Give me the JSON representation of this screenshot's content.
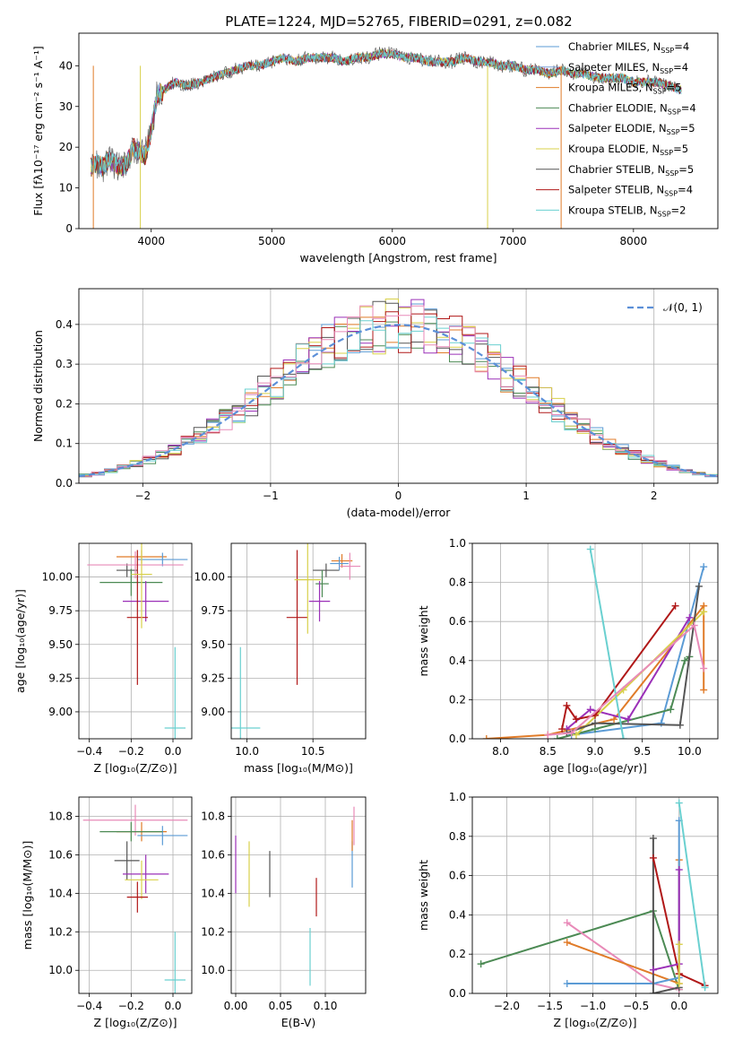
{
  "title": "PLATE=1224, MJD=52765, FIBERID=0291, z=0.082",
  "colors": {
    "c1": "#5b9bd5",
    "c2": "#e07b28",
    "c3": "#4c8a54",
    "c4": "#9b30b8",
    "c5": "#d8d04a",
    "c6": "#555555",
    "c7": "#b01818",
    "c8": "#6ad0d0",
    "c9": "#e88ab8",
    "c10": "#5577dd"
  },
  "chart_data": [
    {
      "type": "line",
      "xlabel": "wavelength [Angstrom, rest frame]",
      "ylabel": "Flux [fλ10⁻¹⁷ erg cm⁻² s⁻¹ A⁻¹]",
      "xlim": [
        3400,
        8700
      ],
      "ylim": [
        0,
        48
      ],
      "xticks": [
        4000,
        5000,
        6000,
        7000,
        8000
      ],
      "yticks": [
        0,
        10,
        20,
        30,
        40
      ],
      "legend_position": "top-right",
      "spectrum": {
        "x": [
          3500,
          3550,
          3600,
          3650,
          3700,
          3750,
          3800,
          3850,
          3900,
          3950,
          4000,
          4050,
          4100,
          4200,
          4300,
          4400,
          4500,
          4600,
          4700,
          4800,
          4900,
          5000,
          5100,
          5200,
          5300,
          5400,
          5500,
          5600,
          5700,
          5800,
          5900,
          6000,
          6100,
          6200,
          6300,
          6400,
          6500,
          6600,
          6700,
          6800,
          6900,
          7000,
          7100,
          7200,
          7300,
          7400,
          7500,
          7600,
          7700,
          7800,
          7900,
          8000,
          8100,
          8200,
          8300,
          8400
        ],
        "y": [
          15,
          16,
          15,
          17,
          16,
          15,
          16,
          20,
          19,
          18,
          24,
          33,
          34,
          36,
          35,
          36,
          37,
          38,
          39,
          40,
          40,
          41,
          42,
          41,
          42,
          42,
          42,
          41,
          42,
          42,
          43,
          43,
          42,
          42,
          41,
          41,
          41,
          42,
          41,
          41,
          40,
          40,
          39,
          39,
          38,
          39,
          38,
          38,
          37,
          37,
          37,
          36,
          36,
          36,
          35,
          34
        ]
      },
      "series": [
        {
          "name": "Chabrier MILES, N_SSP=4",
          "label_main": "Chabrier MILES, N",
          "sub": "SSP",
          "suffix": "=4",
          "color": "#5b9bd5"
        },
        {
          "name": "Salpeter MILES, N_SSP=4",
          "label_main": "Salpeter MILES, N",
          "sub": "SSP",
          "suffix": "=4",
          "color": "#7aa0d8"
        },
        {
          "name": "Kroupa MILES, N_SSP=5",
          "label_main": "Kroupa MILES, N",
          "sub": "SSP",
          "suffix": "=5",
          "color": "#e07b28"
        },
        {
          "name": "Chabrier ELODIE, N_SSP=4",
          "label_main": "Chabrier ELODIE, N",
          "sub": "SSP",
          "suffix": "=4",
          "color": "#4c8a54"
        },
        {
          "name": "Salpeter ELODIE, N_SSP=5",
          "label_main": "Salpeter ELODIE, N",
          "sub": "SSP",
          "suffix": "=5",
          "color": "#9b30b8"
        },
        {
          "name": "Kroupa ELODIE, N_SSP=5",
          "label_main": "Kroupa ELODIE, N",
          "sub": "SSP",
          "suffix": "=5",
          "color": "#d8d04a"
        },
        {
          "name": "Chabrier STELIB, N_SSP=5",
          "label_main": "Chabrier STELIB, N",
          "sub": "SSP",
          "suffix": "=5",
          "color": "#555555"
        },
        {
          "name": "Salpeter STELIB, N_SSP=4",
          "label_main": "Salpeter STELIB, N",
          "sub": "SSP",
          "suffix": "=4",
          "color": "#b01818"
        },
        {
          "name": "Kroupa STELIB, N_SSP=2",
          "label_main": "Kroupa STELIB, N",
          "sub": "SSP",
          "suffix": "=2",
          "color": "#6ad0d0"
        }
      ]
    },
    {
      "type": "area",
      "xlabel": "(data-model)/error",
      "ylabel": "Normed distribution",
      "xlim": [
        -2.5,
        2.5
      ],
      "ylim": [
        0,
        0.49
      ],
      "xticks": [
        -2,
        -1,
        0,
        1,
        2
      ],
      "yticks": [
        0.0,
        0.1,
        0.2,
        0.3,
        0.4
      ],
      "grid": true,
      "legend_position": "top-right",
      "legend": [
        {
          "name": "𝒩(0, 1)",
          "style": "dashed",
          "color": "#5b8fd8"
        }
      ],
      "bin_width": 0.1,
      "histogram_colors": [
        "#5b9bd5",
        "#e07b28",
        "#4c8a54",
        "#9b30b8",
        "#d8d04a",
        "#555555",
        "#b01818",
        "#6ad0d0",
        "#e88ab8"
      ]
    },
    {
      "type": "scatter",
      "xlabel": "Z [log₁₀(Z/Z⊙)]",
      "ylabel": "age  [log₁₀(age/yr)]",
      "xlim": [
        -0.45,
        0.09
      ],
      "ylim": [
        8.8,
        10.25
      ],
      "xticks": [
        -0.4,
        -0.2,
        0.0
      ],
      "yticks": [
        9.0,
        9.25,
        9.5,
        9.75,
        10.0
      ],
      "grid": true,
      "points": [
        {
          "x": -0.22,
          "y": 10.05,
          "xerr": 0.05,
          "yerr": 0.05,
          "color": "#555555"
        },
        {
          "x": -0.15,
          "y": 10.15,
          "xerr": 0.12,
          "yerr": 0.05,
          "color": "#e07b28"
        },
        {
          "x": -0.05,
          "y": 10.13,
          "xerr": 0.12,
          "yerr": 0.05,
          "color": "#5b9bd5"
        },
        {
          "x": -0.18,
          "y": 10.09,
          "xerr": 0.23,
          "yerr": 0.1,
          "color": "#e88ab8"
        },
        {
          "x": -0.2,
          "y": 9.96,
          "xerr": 0.15,
          "yerr": 0.1,
          "color": "#4c8a54"
        },
        {
          "x": -0.13,
          "y": 9.82,
          "xerr": 0.11,
          "yerr": 0.15,
          "color": "#9b30b8"
        },
        {
          "x": -0.17,
          "y": 9.7,
          "xerr": 0.05,
          "yerr": 0.5,
          "color": "#b01818"
        },
        {
          "x": -0.15,
          "y": 10.02,
          "xerr": 0.05,
          "yerr": 0.4,
          "color": "#d8d04a"
        },
        {
          "x": 0.01,
          "y": 8.88,
          "xerr": 0.05,
          "yerr": 0.6,
          "color": "#6ad0d0"
        }
      ]
    },
    {
      "type": "scatter",
      "xlabel": "mass [log₁₀(M/M⊙)]",
      "ylabel": "",
      "xlim": [
        9.88,
        10.9
      ],
      "ylim": [
        8.8,
        10.25
      ],
      "xticks": [
        10.0,
        10.5
      ],
      "yticks": [
        9.0,
        9.25,
        9.5,
        9.75,
        10.0
      ],
      "grid": true,
      "points": [
        {
          "x": 10.6,
          "y": 10.05,
          "xerr": 0.1,
          "yerr": 0.05,
          "color": "#555555"
        },
        {
          "x": 10.72,
          "y": 10.12,
          "xerr": 0.08,
          "yerr": 0.05,
          "color": "#e07b28"
        },
        {
          "x": 10.7,
          "y": 10.1,
          "xerr": 0.07,
          "yerr": 0.05,
          "color": "#5b9bd5"
        },
        {
          "x": 10.78,
          "y": 10.08,
          "xerr": 0.08,
          "yerr": 0.1,
          "color": "#e88ab8"
        },
        {
          "x": 10.57,
          "y": 9.95,
          "xerr": 0.05,
          "yerr": 0.1,
          "color": "#4c8a54"
        },
        {
          "x": 10.55,
          "y": 9.82,
          "xerr": 0.08,
          "yerr": 0.15,
          "color": "#9b30b8"
        },
        {
          "x": 10.38,
          "y": 9.7,
          "xerr": 0.08,
          "yerr": 0.5,
          "color": "#b01818"
        },
        {
          "x": 10.46,
          "y": 9.98,
          "xerr": 0.1,
          "yerr": 0.4,
          "color": "#d8d04a"
        },
        {
          "x": 9.95,
          "y": 8.88,
          "xerr": 0.15,
          "yerr": 0.6,
          "color": "#6ad0d0"
        }
      ]
    },
    {
      "type": "line",
      "xlabel": "age  [log₁₀(age/yr)]",
      "ylabel": "mass weight",
      "xlim": [
        7.7,
        10.3
      ],
      "ylim": [
        0,
        1.0
      ],
      "xticks": [
        8.0,
        8.5,
        9.0,
        9.5,
        10.0
      ],
      "yticks": [
        0.0,
        0.2,
        0.4,
        0.6,
        0.8,
        1.0
      ],
      "grid": true,
      "series": [
        {
          "color": "#5b9bd5",
          "x": [
            8.75,
            9.7,
            10.15
          ],
          "y": [
            0.02,
            0.08,
            0.88
          ]
        },
        {
          "color": "#e07b28",
          "x": [
            7.85,
            8.5,
            9.2,
            10.15,
            10.15
          ],
          "y": [
            0.0,
            0.02,
            0.1,
            0.68,
            0.25
          ]
        },
        {
          "color": "#4c8a54",
          "x": [
            8.6,
            9.0,
            9.8,
            9.95,
            10.0
          ],
          "y": [
            0.0,
            0.05,
            0.15,
            0.4,
            0.42
          ]
        },
        {
          "color": "#9b30b8",
          "x": [
            8.7,
            8.95,
            9.35,
            10.0
          ],
          "y": [
            0.05,
            0.15,
            0.1,
            0.62
          ]
        },
        {
          "color": "#d8d04a",
          "x": [
            8.8,
            9.3,
            10.15
          ],
          "y": [
            0.02,
            0.25,
            0.65
          ]
        },
        {
          "color": "#555555",
          "x": [
            8.7,
            9.0,
            9.9,
            10.1
          ],
          "y": [
            0.03,
            0.08,
            0.07,
            0.78
          ]
        },
        {
          "color": "#b01818",
          "x": [
            8.65,
            8.7,
            8.8,
            9.0,
            9.85
          ],
          "y": [
            0.05,
            0.17,
            0.1,
            0.12,
            0.68
          ]
        },
        {
          "color": "#6ad0d0",
          "x": [
            8.95,
            9.3
          ],
          "y": [
            0.97,
            0.0
          ]
        },
        {
          "color": "#e88ab8",
          "x": [
            8.5,
            8.75,
            10.05,
            10.15
          ],
          "y": [
            0.02,
            0.03,
            0.58,
            0.36
          ]
        }
      ]
    },
    {
      "type": "scatter",
      "xlabel": "Z [log₁₀(Z/Z⊙)]",
      "ylabel": "mass [log₁₀(M/M⊙)]",
      "xlim": [
        -0.45,
        0.09
      ],
      "ylim": [
        9.88,
        10.9
      ],
      "xticks": [
        -0.4,
        -0.2,
        0.0
      ],
      "yticks": [
        10.0,
        10.2,
        10.4,
        10.6,
        10.8
      ],
      "grid": true,
      "points": [
        {
          "x": -0.15,
          "y": 10.72,
          "xerr": 0.12,
          "yerr": 0.05,
          "color": "#e07b28"
        },
        {
          "x": -0.05,
          "y": 10.7,
          "xerr": 0.12,
          "yerr": 0.05,
          "color": "#5b9bd5"
        },
        {
          "x": -0.18,
          "y": 10.78,
          "xerr": 0.25,
          "yerr": 0.08,
          "color": "#e88ab8"
        },
        {
          "x": -0.2,
          "y": 10.72,
          "xerr": 0.15,
          "yerr": 0.05,
          "color": "#4c8a54"
        },
        {
          "x": -0.22,
          "y": 10.57,
          "xerr": 0.06,
          "yerr": 0.1,
          "color": "#555555"
        },
        {
          "x": -0.13,
          "y": 10.5,
          "xerr": 0.11,
          "yerr": 0.1,
          "color": "#9b30b8"
        },
        {
          "x": -0.15,
          "y": 10.47,
          "xerr": 0.08,
          "yerr": 0.1,
          "color": "#d8d04a"
        },
        {
          "x": -0.17,
          "y": 10.38,
          "xerr": 0.05,
          "yerr": 0.08,
          "color": "#b01818"
        },
        {
          "x": 0.01,
          "y": 9.95,
          "xerr": 0.05,
          "yerr": 0.25,
          "color": "#6ad0d0"
        }
      ]
    },
    {
      "type": "scatter",
      "xlabel": "E(B-V)",
      "ylabel": "",
      "xlim": [
        -0.005,
        0.145
      ],
      "ylim": [
        9.88,
        10.9
      ],
      "xticks": [
        0.0,
        0.05,
        0.1
      ],
      "yticks": [
        10.0,
        10.2,
        10.4,
        10.6,
        10.8
      ],
      "grid": true,
      "points": [
        {
          "x": 0.0,
          "y": 10.55,
          "xerr": 0,
          "yerr": 0.15,
          "color": "#9b30b8"
        },
        {
          "x": 0.015,
          "y": 10.5,
          "xerr": 0,
          "yerr": 0.17,
          "color": "#d8d04a"
        },
        {
          "x": 0.038,
          "y": 10.5,
          "xerr": 0,
          "yerr": 0.12,
          "color": "#555555"
        },
        {
          "x": 0.09,
          "y": 10.38,
          "xerr": 0,
          "yerr": 0.1,
          "color": "#b01818"
        },
        {
          "x": 0.083,
          "y": 10.07,
          "xerr": 0,
          "yerr": 0.15,
          "color": "#6ad0d0"
        },
        {
          "x": 0.13,
          "y": 10.55,
          "xerr": 0,
          "yerr": 0.12,
          "color": "#5b9bd5"
        },
        {
          "x": 0.13,
          "y": 10.7,
          "xerr": 0,
          "yerr": 0.08,
          "color": "#e07b28"
        },
        {
          "x": 0.132,
          "y": 10.75,
          "xerr": 0,
          "yerr": 0.1,
          "color": "#e88ab8"
        }
      ]
    },
    {
      "type": "line",
      "xlabel": "Z [log₁₀(Z/Z⊙)]",
      "ylabel": "mass weight",
      "xlim": [
        -2.4,
        0.45
      ],
      "ylim": [
        0,
        1.0
      ],
      "xticks": [
        -2.0,
        -1.5,
        -1.0,
        -0.5,
        0.0
      ],
      "yticks": [
        0.0,
        0.2,
        0.4,
        0.6,
        0.8,
        1.0
      ],
      "grid": true,
      "series": [
        {
          "color": "#4c8a54",
          "x": [
            -2.3,
            -0.3,
            0.0
          ],
          "y": [
            0.15,
            0.42,
            0.02
          ]
        },
        {
          "color": "#e88ab8",
          "x": [
            -1.3,
            -0.3,
            0.0
          ],
          "y": [
            0.36,
            0.05,
            0.02
          ]
        },
        {
          "color": "#e07b28",
          "x": [
            -1.3,
            0.0,
            0.0
          ],
          "y": [
            0.26,
            0.05,
            0.68
          ]
        },
        {
          "color": "#5b9bd5",
          "x": [
            -1.3,
            -0.3,
            0.0,
            0.0
          ],
          "y": [
            0.05,
            0.05,
            0.08,
            0.88
          ]
        },
        {
          "color": "#555555",
          "x": [
            -0.3,
            -0.3,
            0.0
          ],
          "y": [
            0.79,
            0.0,
            0.03
          ]
        },
        {
          "color": "#b01818",
          "x": [
            -0.3,
            0.0,
            0.0,
            0.3
          ],
          "y": [
            0.69,
            0.1,
            0.1,
            0.04
          ]
        },
        {
          "color": "#9b30b8",
          "x": [
            -0.3,
            0.0,
            0.0
          ],
          "y": [
            0.12,
            0.15,
            0.63
          ]
        },
        {
          "color": "#6ad0d0",
          "x": [
            0.0,
            0.3
          ],
          "y": [
            0.97,
            0.03
          ]
        },
        {
          "color": "#d8d04a",
          "x": [
            0.0,
            0.0
          ],
          "y": [
            0.05,
            0.25
          ]
        }
      ]
    }
  ]
}
